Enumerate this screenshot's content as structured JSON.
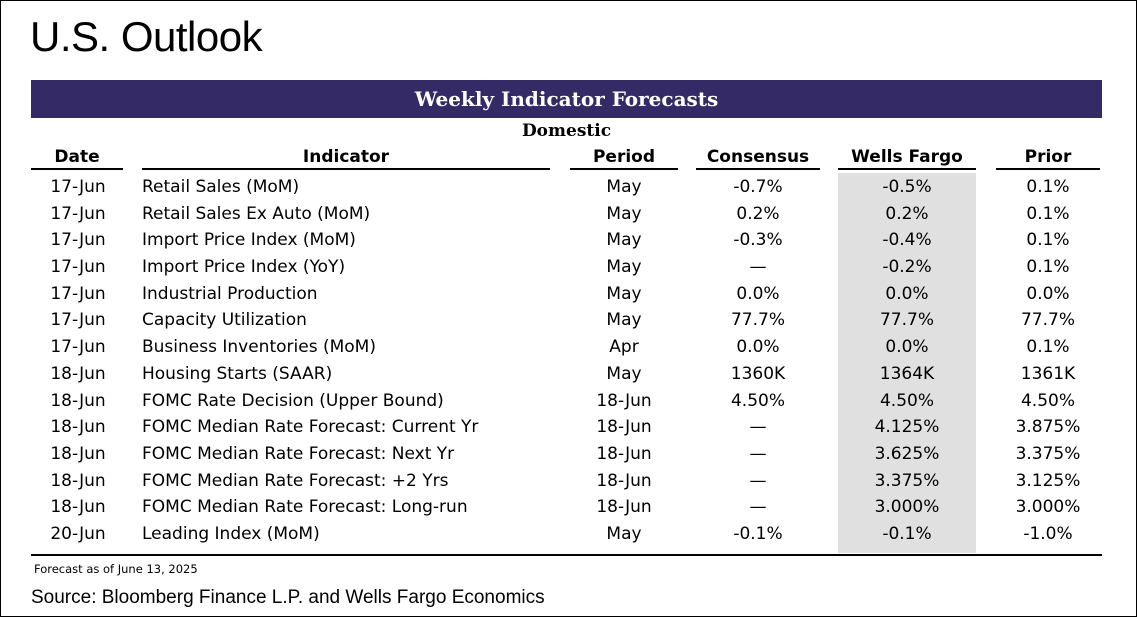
{
  "title": "U.S. Outlook",
  "banner": "Weekly Indicator Forecasts",
  "section": "Domestic",
  "columns": {
    "date": "Date",
    "indicator": "Indicator",
    "period": "Period",
    "consensus": "Consensus",
    "wells_fargo": "Wells Fargo",
    "prior": "Prior"
  },
  "rows": [
    {
      "date": "17-Jun",
      "indicator": "Retail Sales (MoM)",
      "period": "May",
      "consensus": "-0.7%",
      "wells_fargo": "-0.5%",
      "prior": "0.1%"
    },
    {
      "date": "17-Jun",
      "indicator": "Retail Sales Ex Auto (MoM)",
      "period": "May",
      "consensus": "0.2%",
      "wells_fargo": "0.2%",
      "prior": "0.1%"
    },
    {
      "date": "17-Jun",
      "indicator": "Import Price Index (MoM)",
      "period": "May",
      "consensus": "-0.3%",
      "wells_fargo": "-0.4%",
      "prior": "0.1%"
    },
    {
      "date": "17-Jun",
      "indicator": "Import Price Index (YoY)",
      "period": "May",
      "consensus": "—",
      "wells_fargo": "-0.2%",
      "prior": "0.1%"
    },
    {
      "date": "17-Jun",
      "indicator": "Industrial Production",
      "period": "May",
      "consensus": "0.0%",
      "wells_fargo": "0.0%",
      "prior": "0.0%"
    },
    {
      "date": "17-Jun",
      "indicator": "Capacity Utilization",
      "period": "May",
      "consensus": "77.7%",
      "wells_fargo": "77.7%",
      "prior": "77.7%"
    },
    {
      "date": "17-Jun",
      "indicator": "Business Inventories (MoM)",
      "period": "Apr",
      "consensus": "0.0%",
      "wells_fargo": "0.0%",
      "prior": "0.1%"
    },
    {
      "date": "18-Jun",
      "indicator": "Housing Starts (SAAR)",
      "period": "May",
      "consensus": "1360K",
      "wells_fargo": "1364K",
      "prior": "1361K"
    },
    {
      "date": "18-Jun",
      "indicator": "FOMC Rate Decision (Upper Bound)",
      "period": "18-Jun",
      "consensus": "4.50%",
      "wells_fargo": "4.50%",
      "prior": "4.50%"
    },
    {
      "date": "18-Jun",
      "indicator": "FOMC Median Rate Forecast: Current Yr",
      "period": "18-Jun",
      "consensus": "—",
      "wells_fargo": "4.125%",
      "prior": "3.875%"
    },
    {
      "date": "18-Jun",
      "indicator": "FOMC Median Rate Forecast: Next Yr",
      "period": "18-Jun",
      "consensus": "—",
      "wells_fargo": "3.625%",
      "prior": "3.375%"
    },
    {
      "date": "18-Jun",
      "indicator": "FOMC Median Rate Forecast: +2 Yrs",
      "period": "18-Jun",
      "consensus": "—",
      "wells_fargo": "3.375%",
      "prior": "3.125%"
    },
    {
      "date": "18-Jun",
      "indicator": "FOMC Median Rate Forecast: Long-run",
      "period": "18-Jun",
      "consensus": "—",
      "wells_fargo": "3.000%",
      "prior": "3.000%"
    },
    {
      "date": "20-Jun",
      "indicator": "Leading Index (MoM)",
      "period": "May",
      "consensus": "-0.1%",
      "wells_fargo": "-0.1%",
      "prior": "-1.0%"
    }
  ],
  "footnote": "Forecast as of June 13, 2025",
  "source": "Source: Bloomberg Finance L.P. and Wells Fargo Economics",
  "colors": {
    "banner_bg": "#342a66",
    "banner_text": "#ffffff",
    "wells_fargo_highlight": "#e0e0e0"
  }
}
